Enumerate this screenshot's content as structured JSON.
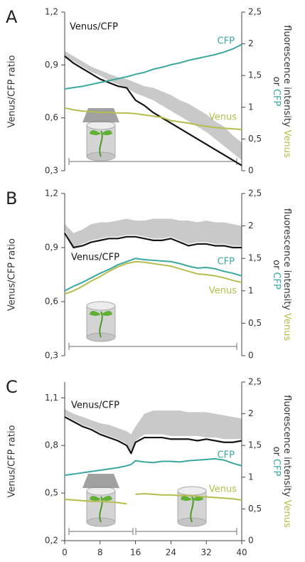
{
  "chart_data": [
    {
      "type": "line",
      "panel": "A",
      "ylabel": "Venus/CFP ratio",
      "y2label": "fluorescence intensity",
      "y2label_connector": "or",
      "x": [
        0,
        2,
        4,
        6,
        8,
        10,
        12,
        14,
        16,
        18,
        20,
        22,
        24,
        26,
        28,
        30,
        32,
        34,
        36,
        38,
        40
      ],
      "xlim": [
        0,
        40
      ],
      "ylim": [
        0.3,
        1.2
      ],
      "yticks": [
        {
          "value": 0.3,
          "label": "0,3"
        },
        {
          "value": 0.6,
          "label": "0,6"
        },
        {
          "value": 0.9,
          "label": "0,9"
        },
        {
          "value": 1.2,
          "label": "1,2"
        }
      ],
      "y2lim": [
        0,
        2.5
      ],
      "y2ticks": [
        0,
        {
          "value": 0.5,
          "label": "0,5"
        },
        1,
        {
          "value": 1.5,
          "label": "1,5"
        },
        2,
        {
          "value": 2.5,
          "label": "2,5"
        }
      ],
      "band": {
        "color": "#c9c9c9",
        "upper": [
          0.98,
          0.95,
          0.92,
          0.89,
          0.87,
          0.85,
          0.83,
          0.82,
          0.8,
          0.78,
          0.77,
          0.75,
          0.73,
          0.7,
          0.68,
          0.65,
          0.62,
          0.58,
          0.55,
          0.5,
          0.46
        ],
        "lower": [
          0.95,
          0.92,
          0.89,
          0.86,
          0.84,
          0.81,
          0.79,
          0.77,
          0.74,
          0.72,
          0.7,
          0.67,
          0.64,
          0.61,
          0.58,
          0.55,
          0.52,
          0.48,
          0.44,
          0.4,
          0.36
        ]
      },
      "series": [
        {
          "name": "Venus/CFP",
          "color": "#151515",
          "values": [
            0.95,
            0.91,
            0.88,
            0.85,
            0.82,
            0.8,
            0.78,
            0.77,
            0.7,
            0.67,
            0.63,
            0.6,
            0.57,
            0.54,
            0.51,
            0.48,
            0.45,
            0.42,
            0.39,
            0.36,
            0.33
          ]
        },
        {
          "name": "CFP",
          "color": "#3aa89f",
          "axis": "y2",
          "values": [
            1.29,
            1.31,
            1.33,
            1.36,
            1.39,
            1.42,
            1.45,
            1.48,
            1.52,
            1.55,
            1.6,
            1.63,
            1.67,
            1.7,
            1.74,
            1.77,
            1.8,
            1.83,
            1.87,
            1.92,
            1.99
          ]
        },
        {
          "name": "Venus",
          "color": "#b6bd4c",
          "axis": "y2",
          "values": [
            0.99,
            0.96,
            0.94,
            0.93,
            0.92,
            0.92,
            0.91,
            0.91,
            0.9,
            0.88,
            0.86,
            0.84,
            0.79,
            0.77,
            0.75,
            0.72,
            0.7,
            0.68,
            0.67,
            0.66,
            0.65
          ]
        }
      ]
    },
    {
      "type": "line",
      "panel": "B",
      "ylabel": "Venus/CFP ratio",
      "y2label": "fluorescence intensity",
      "y2label_connector": "or",
      "x": [
        0,
        2,
        4,
        6,
        8,
        10,
        12,
        14,
        16,
        18,
        20,
        22,
        24,
        26,
        28,
        30,
        32,
        34,
        36,
        38,
        40
      ],
      "xlim": [
        0,
        40
      ],
      "ylim": [
        0.3,
        1.2
      ],
      "yticks": [
        {
          "value": 0.3,
          "label": "0,3"
        },
        {
          "value": 0.6,
          "label": "0,6"
        },
        {
          "value": 0.9,
          "label": "0,9"
        },
        {
          "value": 1.2,
          "label": "1,2"
        }
      ],
      "y2lim": [
        0,
        2.5
      ],
      "y2ticks": [
        0,
        {
          "value": 0.5,
          "label": "0,5"
        },
        1,
        {
          "value": 1.5,
          "label": "1,5"
        },
        2,
        {
          "value": 2.5,
          "label": "2,5"
        }
      ],
      "band": {
        "color": "#c9c9c9",
        "upper": [
          1.03,
          0.98,
          1.0,
          1.03,
          1.04,
          1.04,
          1.05,
          1.06,
          1.05,
          1.05,
          1.06,
          1.06,
          1.06,
          1.05,
          1.05,
          1.04,
          1.05,
          1.04,
          1.04,
          1.03,
          1.02
        ],
        "lower": [
          1.0,
          0.9,
          0.92,
          0.94,
          0.95,
          0.96,
          0.96,
          0.97,
          0.97,
          0.96,
          0.95,
          0.95,
          0.96,
          0.94,
          0.92,
          0.93,
          0.93,
          0.92,
          0.92,
          0.91,
          0.91
        ]
      },
      "series": [
        {
          "name": "Venus/CFP",
          "color": "#151515",
          "values": [
            0.98,
            0.9,
            0.91,
            0.93,
            0.94,
            0.95,
            0.95,
            0.96,
            0.96,
            0.95,
            0.94,
            0.94,
            0.95,
            0.93,
            0.91,
            0.92,
            0.92,
            0.91,
            0.91,
            0.9,
            0.9
          ]
        },
        {
          "name": "CFP",
          "color": "#3aa89f",
          "axis": "y2",
          "values": [
            1.0,
            1.07,
            1.13,
            1.2,
            1.27,
            1.33,
            1.4,
            1.45,
            1.5,
            1.48,
            1.47,
            1.46,
            1.45,
            1.42,
            1.38,
            1.35,
            1.36,
            1.34,
            1.3,
            1.27,
            1.23
          ]
        },
        {
          "name": "Venus",
          "color": "#b6bd4c",
          "axis": "y2",
          "values": [
            0.95,
            1.0,
            1.07,
            1.15,
            1.22,
            1.3,
            1.37,
            1.42,
            1.45,
            1.44,
            1.42,
            1.4,
            1.38,
            1.34,
            1.3,
            1.26,
            1.25,
            1.23,
            1.2,
            1.16,
            1.13
          ]
        }
      ]
    },
    {
      "type": "line",
      "panel": "C",
      "ylabel": "Venus/CFP ratio",
      "y2label": "fluorescence intensity",
      "y2label_connector": "or",
      "x": [
        0,
        2,
        4,
        6,
        8,
        10,
        12,
        14,
        15,
        16,
        18,
        20,
        22,
        24,
        26,
        28,
        30,
        32,
        34,
        36,
        38,
        40
      ],
      "xlim": [
        0,
        40
      ],
      "xticks": [
        0,
        8,
        16,
        24,
        32,
        40
      ],
      "ylim": [
        0.2,
        1.2
      ],
      "yticks": [
        {
          "value": 0.2,
          "label": "0,2"
        },
        {
          "value": 0.5,
          "label": "0,5"
        },
        {
          "value": 0.8,
          "label": "0,8"
        },
        {
          "value": 1.1,
          "label": "1,1"
        }
      ],
      "y2lim": [
        0,
        2.5
      ],
      "y2ticks": [
        0,
        {
          "value": 0.5,
          "label": "0,5"
        },
        1,
        {
          "value": 1.5,
          "label": "1,5"
        },
        2,
        {
          "value": 2.5,
          "label": "2,5"
        }
      ],
      "band": {
        "color": "#c9c9c9",
        "upper": [
          1.03,
          1.0,
          0.98,
          0.96,
          0.94,
          0.93,
          0.91,
          0.89,
          0.87,
          0.92,
          1.0,
          1.02,
          1.02,
          1.02,
          1.02,
          1.01,
          1.01,
          1.01,
          1.0,
          0.99,
          0.98,
          0.97
        ],
        "lower": [
          0.99,
          0.96,
          0.93,
          0.91,
          0.88,
          0.86,
          0.84,
          0.81,
          0.76,
          0.83,
          0.87,
          0.87,
          0.87,
          0.86,
          0.86,
          0.86,
          0.86,
          0.85,
          0.85,
          0.84,
          0.84,
          0.84
        ]
      },
      "series": [
        {
          "name": "Venus/CFP",
          "color": "#151515",
          "values": [
            0.98,
            0.95,
            0.92,
            0.9,
            0.87,
            0.85,
            0.83,
            0.8,
            0.75,
            0.82,
            0.85,
            0.85,
            0.85,
            0.84,
            0.84,
            0.84,
            0.83,
            0.84,
            0.83,
            0.82,
            0.82,
            0.83
          ]
        },
        {
          "name": "CFP",
          "color": "#3aa89f",
          "axis": "y2",
          "values": [
            1.03,
            1.05,
            1.07,
            1.09,
            1.11,
            1.13,
            1.15,
            1.18,
            1.2,
            1.26,
            1.24,
            1.23,
            1.25,
            1.25,
            1.24,
            1.26,
            1.27,
            1.28,
            1.29,
            1.27,
            1.22,
            1.18
          ]
        },
        {
          "name": "Venus",
          "color": "#b6bd4c",
          "axis": "y2",
          "values": [
            0.65,
            0.64,
            0.63,
            0.62,
            0.62,
            0.61,
            0.6,
            0.58,
            null,
            0.73,
            0.74,
            0.73,
            0.72,
            0.72,
            0.71,
            0.71,
            0.7,
            0.69,
            0.68,
            0.67,
            0.66,
            0.64
          ]
        }
      ]
    }
  ]
}
